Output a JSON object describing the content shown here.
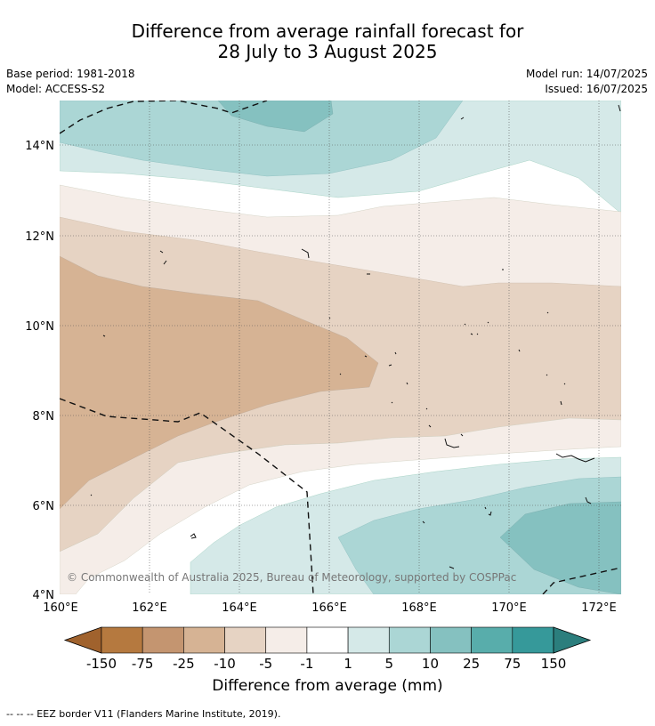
{
  "title_line1": "Difference from average rainfall forecast for",
  "title_line2": "28 July to 3 August 2025",
  "base_period": "Base period: 1981-2018",
  "model": "Model: ACCESS-S2",
  "model_run": "Model run: 14/07/2025",
  "issued": "Issued: 16/07/2025",
  "copyright": "© Commonwealth of Australia 2025, Bureau of Meteorology, supported by COSPPac",
  "map": {
    "lon_range": [
      160,
      172.5
    ],
    "lat_range": [
      4,
      15
    ],
    "lat_ticks": [
      {
        "value": 14,
        "label": "14°N"
      },
      {
        "value": 12,
        "label": "12°N"
      },
      {
        "value": 10,
        "label": "10°N"
      },
      {
        "value": 8,
        "label": "8°N"
      },
      {
        "value": 6,
        "label": "6°N"
      },
      {
        "value": 4,
        "label": "4°N"
      }
    ],
    "lon_ticks": [
      {
        "value": 160,
        "label": "160°E"
      },
      {
        "value": 162,
        "label": "162°E"
      },
      {
        "value": 164,
        "label": "164°E"
      },
      {
        "value": 166,
        "label": "166°E"
      },
      {
        "value": 168,
        "label": "168°E"
      },
      {
        "value": 170,
        "label": "170°E"
      },
      {
        "value": 172,
        "label": "172°E"
      }
    ],
    "gridlines": true
  },
  "colorbar": {
    "title": "Difference from average (mm)",
    "labels": [
      "-150",
      "-75",
      "-25",
      "-10",
      "-5",
      "-1",
      "1",
      "5",
      "10",
      "25",
      "75",
      "150"
    ],
    "colors": [
      "#a0622d",
      "#b5793f",
      "#c49570",
      "#d6b394",
      "#e6d3c3",
      "#f5ede8",
      "#ffffff",
      "#d5e9e8",
      "#abd6d5",
      "#85c1c0",
      "#58adab",
      "#36999a",
      "#2b7e7d"
    ]
  },
  "footnote": "--  --  -- EEZ border V11 (Flanders Marine Institute, 2019)."
}
